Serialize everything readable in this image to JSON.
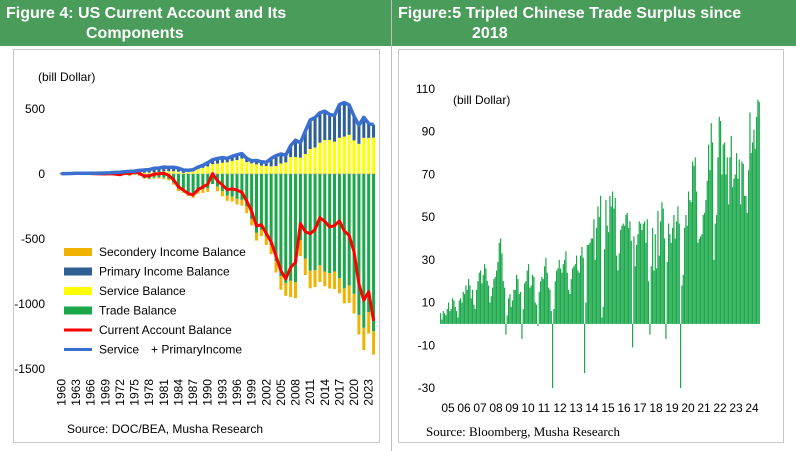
{
  "left_panel": {
    "title_line1": "Figure 4: US Current Account and Its",
    "title_line2": "Components",
    "source": "Source: DOC/BEA, Musha Research"
  },
  "right_panel": {
    "title_line1": "Figure:5 Tripled Chinese Trade Surplus since",
    "title_line2": "2018",
    "source": "Source: Bloomberg, Musha Research"
  },
  "colors": {
    "header_bg": "#4a9c5a",
    "secondary_income": "#f0b400",
    "primary_income": "#2e5f95",
    "service": "#ffff00",
    "trade": "#1aa84a",
    "current_account": "#ff0000",
    "service_primary": "#3a6fd0",
    "china_bars": "#1aa84a"
  },
  "chart_data": [
    {
      "type": "bar",
      "unit_label": "(bill Dollar)",
      "ylim": [
        -1500,
        600
      ],
      "yticks": [
        500,
        0,
        -500,
        -1000,
        -1500
      ],
      "xtick_labels": [
        "1960",
        "1963",
        "1966",
        "1969",
        "1972",
        "1975",
        "1978",
        "1981",
        "1984",
        "1987",
        "1990",
        "1993",
        "1996",
        "1999",
        "2002",
        "2005",
        "2008",
        "2011",
        "2014",
        "2017",
        "2020",
        "2023"
      ],
      "legend_position": "lower-left",
      "x": [
        1960,
        1961,
        1962,
        1963,
        1964,
        1965,
        1966,
        1967,
        1968,
        1969,
        1970,
        1971,
        1972,
        1973,
        1974,
        1975,
        1976,
        1977,
        1978,
        1979,
        1980,
        1981,
        1982,
        1983,
        1984,
        1985,
        1986,
        1987,
        1988,
        1989,
        1990,
        1991,
        1992,
        1993,
        1994,
        1995,
        1996,
        1997,
        1998,
        1999,
        2000,
        2001,
        2002,
        2003,
        2004,
        2005,
        2006,
        2007,
        2008,
        2009,
        2010,
        2011,
        2012,
        2013,
        2014,
        2015,
        2016,
        2017,
        2018,
        2019,
        2020,
        2021,
        2022,
        2023,
        2024
      ],
      "series": [
        {
          "name": "Secondery Income Balance",
          "kind": "bar",
          "values": [
            -4,
            -4,
            -4,
            -5,
            -5,
            -5,
            -5,
            -6,
            -6,
            -6,
            -6,
            -7,
            -8,
            -7,
            -9,
            -7,
            -5,
            -5,
            -6,
            -7,
            -9,
            -12,
            -14,
            -15,
            -20,
            -23,
            -25,
            -24,
            -26,
            -27,
            -27,
            10,
            -36,
            -39,
            -40,
            -38,
            -43,
            -45,
            -53,
            -50,
            -59,
            -52,
            -64,
            -71,
            -88,
            -106,
            -99,
            -125,
            -123,
            -121,
            -127,
            -135,
            -129,
            -127,
            -112,
            -118,
            -135,
            -116,
            -115,
            -135,
            -151,
            -150,
            -172,
            -166,
            -180
          ]
        },
        {
          "name": "Primary Income Balance",
          "kind": "bar",
          "values": [
            4,
            4,
            4,
            5,
            6,
            6,
            6,
            6,
            7,
            7,
            8,
            9,
            10,
            13,
            16,
            15,
            18,
            21,
            23,
            32,
            30,
            33,
            29,
            31,
            27,
            22,
            13,
            11,
            15,
            19,
            29,
            34,
            39,
            39,
            30,
            35,
            40,
            38,
            28,
            20,
            30,
            30,
            30,
            60,
            80,
            73,
            56,
            89,
            129,
            113,
            176,
            223,
            230,
            230,
            222,
            196,
            201,
            256,
            262,
            228,
            186,
            143,
            158,
            110,
            100
          ]
        },
        {
          "name": "Service Balance",
          "kind": "bar",
          "values": [
            -1,
            -1,
            0,
            0,
            0,
            0,
            0,
            -1,
            0,
            1,
            1,
            3,
            3,
            4,
            4,
            7,
            10,
            10,
            11,
            12,
            16,
            20,
            22,
            21,
            18,
            9,
            16,
            22,
            38,
            48,
            58,
            76,
            80,
            87,
            90,
            101,
            108,
            119,
            92,
            82,
            74,
            64,
            61,
            59,
            61,
            81,
            89,
            130,
            131,
            126,
            154,
            192,
            204,
            241,
            261,
            262,
            249,
            278,
            288,
            302,
            258,
            232,
            278,
            278,
            280
          ]
        },
        {
          "name": "Trade Balance",
          "kind": "bar",
          "values": [
            5,
            6,
            5,
            5,
            7,
            5,
            4,
            4,
            1,
            1,
            3,
            -2,
            -6,
            1,
            -5,
            9,
            -9,
            -31,
            -34,
            -28,
            -26,
            -28,
            -36,
            -67,
            -112,
            -122,
            -145,
            -160,
            -126,
            -118,
            -111,
            -77,
            -97,
            -133,
            -166,
            -174,
            -191,
            -199,
            -249,
            -345,
            -453,
            -427,
            -482,
            -546,
            -669,
            -784,
            -838,
            -822,
            -833,
            -510,
            -650,
            -744,
            -741,
            -703,
            -752,
            -762,
            -750,
            -802,
            -880,
            -857,
            -922,
            -1084,
            -1183,
            -1062,
            -1210
          ]
        },
        {
          "name": "Current Account Balance",
          "kind": "line",
          "values": [
            3,
            4,
            4,
            5,
            8,
            6,
            3,
            2,
            1,
            0,
            2,
            -1,
            -6,
            7,
            2,
            18,
            4,
            -15,
            -15,
            -1,
            2,
            5,
            -11,
            -44,
            -99,
            -124,
            -151,
            -161,
            -121,
            -99,
            -79,
            3,
            -52,
            -84,
            -121,
            -114,
            -124,
            -140,
            -209,
            -286,
            -401,
            -390,
            -458,
            -521,
            -631,
            -745,
            -806,
            -718,
            -681,
            -381,
            -443,
            -460,
            -427,
            -336,
            -365,
            -408,
            -397,
            -361,
            -439,
            -472,
            -601,
            -846,
            -971,
            -905,
            -1130
          ]
        },
        {
          "name": "Service　+ PrimaryIncome",
          "kind": "line",
          "values": [
            3,
            3,
            4,
            5,
            6,
            6,
            6,
            5,
            7,
            8,
            9,
            12,
            13,
            17,
            20,
            22,
            28,
            31,
            34,
            44,
            46,
            53,
            51,
            52,
            45,
            31,
            29,
            33,
            53,
            67,
            87,
            110,
            119,
            126,
            120,
            136,
            148,
            157,
            120,
            102,
            104,
            94,
            91,
            119,
            141,
            154,
            145,
            219,
            260,
            239,
            330,
            415,
            434,
            471,
            483,
            458,
            450,
            534,
            550,
            530,
            444,
            375,
            436,
            388,
            380
          ]
        }
      ]
    },
    {
      "type": "bar",
      "unit_label": "(bill Dollar)",
      "ylim": [
        -30,
        110
      ],
      "yticks": [
        110,
        90,
        70,
        50,
        30,
        10,
        -10,
        -30
      ],
      "xtick_labels": [
        "05",
        "06",
        "07",
        "08",
        "09",
        "10",
        "11",
        "12",
        "13",
        "14",
        "15",
        "16",
        "17",
        "18",
        "19",
        "20",
        "21",
        "22",
        "23",
        "24"
      ],
      "legend_position": "none",
      "series": [
        {
          "name": "",
          "kind": "bar",
          "frequency": "monthly",
          "start": "2005-01",
          "values": [
            5,
            2,
            6,
            5,
            4,
            7,
            10,
            6,
            7,
            12,
            11,
            8,
            6,
            3,
            11,
            12,
            10,
            15,
            14,
            18,
            16,
            21,
            18,
            12,
            16,
            9,
            7,
            16,
            20,
            24,
            25,
            19,
            23,
            28,
            26,
            20,
            18,
            10,
            13,
            17,
            21,
            22,
            25,
            29,
            38,
            40,
            33,
            20,
            17,
            -5,
            4,
            12,
            14,
            8,
            11,
            16,
            16,
            23,
            21,
            14,
            15,
            -7,
            7,
            19,
            20,
            25,
            28,
            17,
            18,
            23,
            22,
            10,
            9,
            -1,
            15,
            20,
            22,
            21,
            27,
            31,
            24,
            17,
            16,
            6,
            -30,
            7,
            20,
            25,
            26,
            30,
            26,
            24,
            28,
            30,
            34,
            24,
            16,
            14,
            21,
            26,
            27,
            28,
            32,
            25,
            24,
            32,
            36,
            31,
            -23,
            10,
            37,
            37,
            38,
            40,
            40,
            49,
            30,
            45,
            55,
            50,
            60,
            3,
            8,
            35,
            58,
            46,
            43,
            60,
            55,
            62,
            54,
            59,
            32,
            25,
            33,
            44,
            46,
            47,
            46,
            51,
            52,
            45,
            48,
            39,
            -11,
            41,
            27,
            37,
            42,
            48,
            47,
            44,
            47,
            48,
            38,
            49,
            20,
            -5,
            27,
            45,
            25,
            42,
            26,
            53,
            32,
            48,
            57,
            54,
            40,
            -7,
            29,
            47,
            42,
            38,
            45,
            51,
            40,
            48,
            55,
            47,
            -30,
            18,
            23,
            45,
            51,
            46,
            62,
            58,
            57,
            76,
            74,
            78,
            62,
            38,
            40,
            41,
            42,
            51,
            52,
            58,
            67,
            84,
            72,
            94,
            85,
            30,
            47,
            51,
            78,
            97,
            95,
            70,
            84,
            85,
            70,
            78,
            56,
            78,
            88,
            64,
            68,
            70,
            80,
            68,
            77,
            56,
            76,
            75,
            60,
            60,
            52,
            72,
            99,
            80,
            85,
            91,
            82,
            97,
            105,
            104
          ]
        }
      ]
    }
  ]
}
